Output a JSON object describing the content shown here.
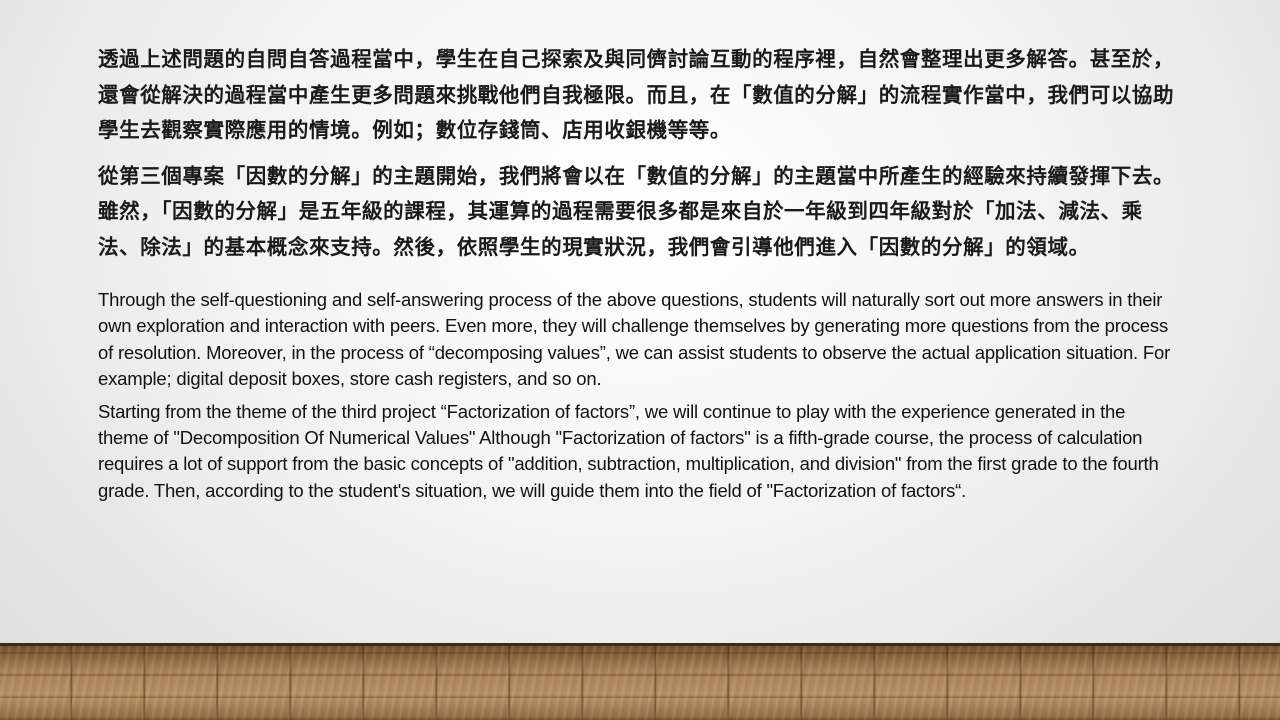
{
  "paragraphs_zh": [
    "透過上述問題的自問自答過程當中，學生在自己探索及與同儕討論互動的程序裡，自然會整理出更多解答。甚至於，還會從解決的過程當中產生更多問題來挑戰他們自我極限。而且，在「數值的分解」的流程實作當中，我們可以協助學生去觀察實際應用的情境。例如；數位存錢筒、店用收銀機等等。",
    "從第三個專案「因數的分解」的主題開始，我們將會以在「數值的分解」的主題當中所產生的經驗來持續發揮下去。雖然，「因數的分解」是五年級的課程，其運算的過程需要很多都是來自於一年級到四年級對於「加法、減法、乘法、除法」的基本概念來支持。然後，依照學生的現實狀況，我們會引導他們進入「因數的分解」的領域。"
  ],
  "paragraphs_en": [
    "Through the self-questioning and self-answering process of the above questions, students will naturally sort out more answers in their own exploration and interaction with peers. Even more, they will challenge themselves by generating more questions from the process of resolution. Moreover, in the process of “decomposing values”, we can assist students to observe the actual application situation. For example; digital deposit boxes, store cash registers, and so on.",
    "Starting from the theme of the third project “Factorization of factors”, we will continue to play with the experience generated in the theme of \"Decomposition Of Numerical Values\" Although \"Factorization of factors\" is a fifth-grade course, the process of calculation requires a lot of support from the basic concepts of \"addition, subtraction, multiplication, and division\" from the first grade to the fourth grade. Then, according to the student's situation, we will guide them into the field of \"Factorization of factors“."
  ],
  "colors": {
    "text": "#1a1a1a",
    "floor": "#a9825a",
    "background": "#f3f3f3"
  }
}
